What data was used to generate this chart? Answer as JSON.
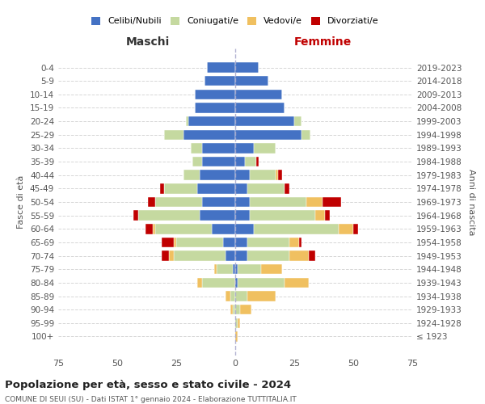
{
  "age_groups": [
    "100+",
    "95-99",
    "90-94",
    "85-89",
    "80-84",
    "75-79",
    "70-74",
    "65-69",
    "60-64",
    "55-59",
    "50-54",
    "45-49",
    "40-44",
    "35-39",
    "30-34",
    "25-29",
    "20-24",
    "15-19",
    "10-14",
    "5-9",
    "0-4"
  ],
  "birth_years": [
    "≤ 1923",
    "1924-1928",
    "1929-1933",
    "1934-1938",
    "1939-1943",
    "1944-1948",
    "1949-1953",
    "1954-1958",
    "1959-1963",
    "1964-1968",
    "1969-1973",
    "1974-1978",
    "1979-1983",
    "1984-1988",
    "1989-1993",
    "1994-1998",
    "1999-2003",
    "2004-2008",
    "2009-2013",
    "2014-2018",
    "2019-2023"
  ],
  "male_single": [
    0,
    0,
    0,
    0,
    0,
    1,
    4,
    5,
    10,
    15,
    14,
    16,
    15,
    14,
    14,
    22,
    20,
    17,
    17,
    13,
    12
  ],
  "male_married": [
    0,
    0,
    1,
    2,
    14,
    7,
    22,
    20,
    24,
    26,
    20,
    14,
    7,
    4,
    5,
    8,
    1,
    0,
    0,
    0,
    0
  ],
  "male_widowed": [
    0,
    0,
    1,
    2,
    2,
    1,
    2,
    1,
    1,
    0,
    0,
    0,
    0,
    0,
    0,
    0,
    0,
    0,
    0,
    0,
    0
  ],
  "male_divorced": [
    0,
    0,
    0,
    0,
    0,
    0,
    3,
    5,
    3,
    2,
    3,
    2,
    0,
    0,
    0,
    0,
    0,
    0,
    0,
    0,
    0
  ],
  "female_single": [
    0,
    0,
    0,
    0,
    1,
    1,
    5,
    5,
    8,
    6,
    6,
    5,
    6,
    4,
    8,
    28,
    25,
    21,
    20,
    14,
    10
  ],
  "female_married": [
    0,
    1,
    2,
    5,
    20,
    10,
    18,
    18,
    36,
    28,
    24,
    16,
    11,
    5,
    9,
    4,
    3,
    0,
    0,
    0,
    0
  ],
  "female_widowed": [
    1,
    1,
    5,
    12,
    10,
    9,
    8,
    4,
    6,
    4,
    7,
    0,
    1,
    0,
    0,
    0,
    0,
    0,
    0,
    0,
    0
  ],
  "female_divorced": [
    0,
    0,
    0,
    0,
    0,
    0,
    3,
    1,
    2,
    2,
    8,
    2,
    2,
    1,
    0,
    0,
    0,
    0,
    0,
    0,
    0
  ],
  "colors": {
    "single": "#4472c4",
    "married": "#c5d9a0",
    "widowed": "#f0c060",
    "divorced": "#c00000"
  },
  "legend_labels": [
    "Celibi/Nubili",
    "Coniugati/e",
    "Vedovi/e",
    "Divorziati/e"
  ],
  "title_main": "Popolazione per età, sesso e stato civile - 2024",
  "title_sub": "COMUNE DI SEUI (SU) - Dati ISTAT 1° gennaio 2024 - Elaborazione TUTTITALIA.IT",
  "label_maschi": "Maschi",
  "label_femmine": "Femmine",
  "label_fasce": "Fasce di età",
  "label_anni": "Anni di nascita",
  "xlim": 75,
  "bg_color": "#ffffff",
  "grid_color": "#cccccc"
}
